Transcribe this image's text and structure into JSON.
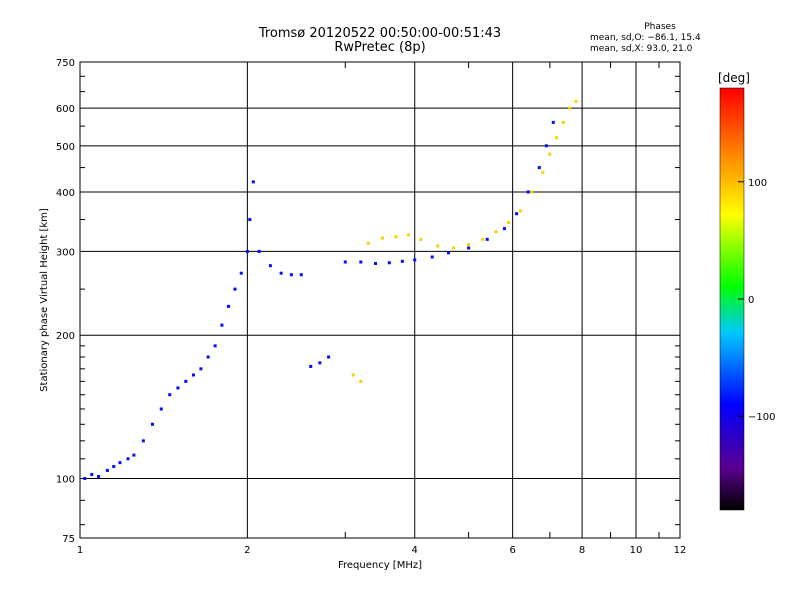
{
  "title": {
    "line1": "Tromsø 20120522 00:50:00-00:51:43",
    "line2": "RwPretec (8p)"
  },
  "phases": {
    "label": "Phases",
    "line1": "mean, sd,O: −86.1, 15.4",
    "line2": "mean, sd,X:  93.0, 21.0"
  },
  "chart_data": {
    "type": "scatter",
    "title": "Tromsø 20120522 00:50:00-00:51:43",
    "subtitle": "RwPretec (8p)",
    "xlabel": "Frequency [MHz]",
    "ylabel": "Stationary phase Virtual Height [km]",
    "x_scale": "log",
    "y_scale": "log",
    "xlim": [
      1,
      12
    ],
    "ylim": [
      75,
      750
    ],
    "x_ticks": [
      1,
      2,
      4,
      6,
      8,
      10,
      12
    ],
    "x_tick_labels": [
      "1",
      "2",
      "4",
      "6",
      "8",
      "10",
      "12"
    ],
    "y_ticks": [
      75,
      100,
      200,
      300,
      400,
      500,
      600,
      750
    ],
    "y_tick_labels": [
      "75",
      "100",
      "200",
      "300",
      "400",
      "500",
      "600",
      "750"
    ],
    "grid": true,
    "colorbar": {
      "label": "[deg]",
      "range": [
        -180,
        180
      ],
      "ticks": [
        100,
        0,
        -100
      ],
      "tick_labels": [
        "100",
        "0",
        "−100"
      ],
      "colors": [
        "#000000",
        "#5a0090",
        "#0000ff",
        "#00c8ff",
        "#00ff00",
        "#ffff00",
        "#ff8000",
        "#ff0000"
      ]
    },
    "series": [
      {
        "name": "O-mode",
        "phase_mean": -86.1,
        "phase_sd": 15.4,
        "x": [
          1.02,
          1.05,
          1.08,
          1.12,
          1.15,
          1.18,
          1.22,
          1.25,
          1.3,
          1.35,
          1.4,
          1.45,
          1.5,
          1.55,
          1.6,
          1.65,
          1.7,
          1.75,
          1.8,
          1.85,
          1.9,
          1.95,
          2.0,
          2.02,
          2.05,
          2.1,
          2.2,
          2.3,
          2.4,
          2.5,
          2.6,
          2.7,
          2.8,
          3.0,
          3.2,
          3.4,
          3.6,
          3.8,
          4.0,
          4.3,
          4.6,
          5.0,
          5.4,
          5.8,
          6.1,
          6.4,
          6.7,
          6.9,
          7.1
        ],
        "y": [
          100,
          102,
          101,
          104,
          106,
          108,
          110,
          112,
          120,
          130,
          140,
          150,
          155,
          160,
          165,
          170,
          180,
          190,
          210,
          230,
          250,
          270,
          300,
          350,
          420,
          300,
          280,
          270,
          268,
          268,
          172,
          175,
          180,
          285,
          285,
          283,
          284,
          286,
          288,
          292,
          298,
          305,
          318,
          335,
          360,
          400,
          450,
          500,
          560
        ]
      },
      {
        "name": "X-mode",
        "phase_mean": 93.0,
        "phase_sd": 21.0,
        "x": [
          3.1,
          3.2,
          3.3,
          3.5,
          3.7,
          3.9,
          4.1,
          4.4,
          4.7,
          5.0,
          5.3,
          5.6,
          5.9,
          6.2,
          6.5,
          6.8,
          7.0,
          7.2,
          7.4,
          7.6,
          7.8
        ],
        "y": [
          165,
          160,
          312,
          320,
          322,
          325,
          318,
          308,
          305,
          310,
          318,
          330,
          345,
          365,
          400,
          440,
          480,
          520,
          560,
          600,
          620
        ]
      }
    ]
  }
}
